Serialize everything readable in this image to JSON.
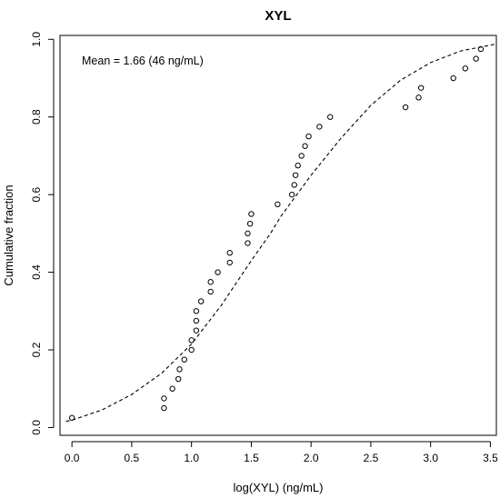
{
  "chart_data": {
    "type": "scatter",
    "title": "XYL",
    "xlabel": "log(XYL) (ng/mL)",
    "ylabel": "Cumulative fraction",
    "xlim": [
      -0.1,
      3.55
    ],
    "ylim": [
      -0.02,
      1.01
    ],
    "x_ticks": [
      0.0,
      0.5,
      1.0,
      1.5,
      2.0,
      2.5,
      3.0,
      3.5
    ],
    "x_tick_labels": [
      "0.0",
      "0.5",
      "1.0",
      "1.5",
      "2.0",
      "2.5",
      "3.0",
      "3.5"
    ],
    "y_ticks": [
      0.0,
      0.2,
      0.4,
      0.6,
      0.8,
      1.0
    ],
    "y_tick_labels": [
      "0.0",
      "0.2",
      "0.4",
      "0.6",
      "0.8",
      "1.0"
    ],
    "annotation": "Mean = 1.66 (46 ng/mL)",
    "grid": false,
    "points": [
      {
        "x": 0.0,
        "y": 0.025
      },
      {
        "x": 0.77,
        "y": 0.05
      },
      {
        "x": 0.77,
        "y": 0.075
      },
      {
        "x": 0.84,
        "y": 0.1
      },
      {
        "x": 0.89,
        "y": 0.125
      },
      {
        "x": 0.9,
        "y": 0.15
      },
      {
        "x": 0.94,
        "y": 0.175
      },
      {
        "x": 1.0,
        "y": 0.2
      },
      {
        "x": 1.0,
        "y": 0.225
      },
      {
        "x": 1.04,
        "y": 0.25
      },
      {
        "x": 1.04,
        "y": 0.275
      },
      {
        "x": 1.04,
        "y": 0.3
      },
      {
        "x": 1.08,
        "y": 0.325
      },
      {
        "x": 1.16,
        "y": 0.35
      },
      {
        "x": 1.16,
        "y": 0.375
      },
      {
        "x": 1.22,
        "y": 0.4
      },
      {
        "x": 1.32,
        "y": 0.425
      },
      {
        "x": 1.32,
        "y": 0.45
      },
      {
        "x": 1.47,
        "y": 0.475
      },
      {
        "x": 1.47,
        "y": 0.5
      },
      {
        "x": 1.49,
        "y": 0.525
      },
      {
        "x": 1.5,
        "y": 0.55
      },
      {
        "x": 1.72,
        "y": 0.575
      },
      {
        "x": 1.84,
        "y": 0.6
      },
      {
        "x": 1.86,
        "y": 0.625
      },
      {
        "x": 1.87,
        "y": 0.65
      },
      {
        "x": 1.89,
        "y": 0.675
      },
      {
        "x": 1.92,
        "y": 0.7
      },
      {
        "x": 1.95,
        "y": 0.725
      },
      {
        "x": 1.98,
        "y": 0.75
      },
      {
        "x": 2.07,
        "y": 0.775
      },
      {
        "x": 2.16,
        "y": 0.8
      },
      {
        "x": 2.79,
        "y": 0.825
      },
      {
        "x": 2.9,
        "y": 0.85
      },
      {
        "x": 2.92,
        "y": 0.875
      },
      {
        "x": 3.19,
        "y": 0.9
      },
      {
        "x": 3.29,
        "y": 0.925
      },
      {
        "x": 3.38,
        "y": 0.95
      },
      {
        "x": 3.42,
        "y": 0.975
      }
    ],
    "fit_curve": {
      "style": "dashed",
      "points": [
        {
          "x": -0.05,
          "y": 0.016
        },
        {
          "x": 0.0,
          "y": 0.019
        },
        {
          "x": 0.25,
          "y": 0.045
        },
        {
          "x": 0.5,
          "y": 0.085
        },
        {
          "x": 0.75,
          "y": 0.14
        },
        {
          "x": 1.0,
          "y": 0.215
        },
        {
          "x": 1.25,
          "y": 0.315
        },
        {
          "x": 1.5,
          "y": 0.43
        },
        {
          "x": 1.66,
          "y": 0.5
        },
        {
          "x": 1.75,
          "y": 0.545
        },
        {
          "x": 2.0,
          "y": 0.65
        },
        {
          "x": 2.25,
          "y": 0.745
        },
        {
          "x": 2.5,
          "y": 0.83
        },
        {
          "x": 2.75,
          "y": 0.895
        },
        {
          "x": 3.0,
          "y": 0.94
        },
        {
          "x": 3.25,
          "y": 0.97
        },
        {
          "x": 3.5,
          "y": 0.985
        },
        {
          "x": 3.55,
          "y": 0.988
        }
      ]
    }
  }
}
